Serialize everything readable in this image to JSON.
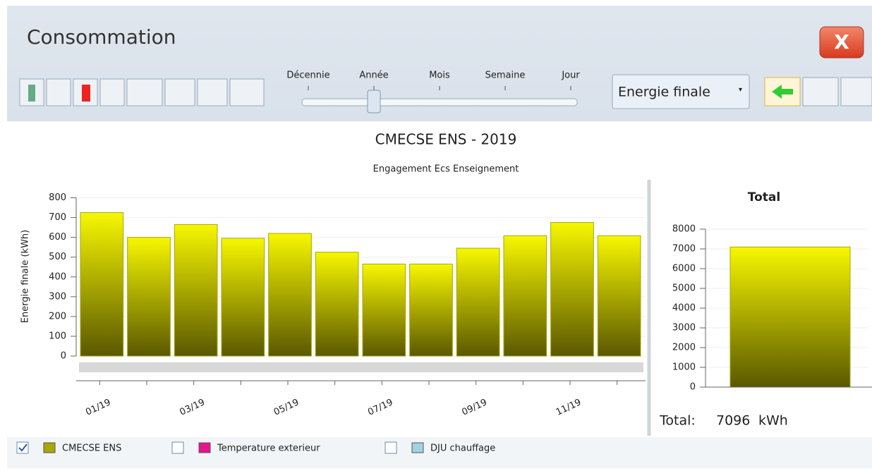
{
  "window": {
    "title": "Consommation",
    "close_label": "X"
  },
  "toolbar": {
    "slider_labels": [
      "Décennie",
      "Année",
      "Mois",
      "Semaine",
      "Jour"
    ],
    "slider_selected": 1,
    "dropdown": "Energie finale"
  },
  "legend_items": [
    {
      "name": "Temperature exterieur",
      "color": "#e6158c",
      "checked": false
    },
    {
      "name": "DJU chauffage",
      "color": "#9fd3df",
      "checked": false
    }
  ],
  "chart_data": [
    {
      "type": "bar",
      "title": "CMECSE ENS - 2019",
      "subtitle": "Engagement  Ecs Enseignement",
      "y_label": "Energie finale (kWh)",
      "categories": [
        "01/19",
        null,
        "03/19",
        null,
        "05/19",
        null,
        "07/19",
        null,
        "09/19",
        null,
        "11/19",
        null
      ],
      "series": [
        {
          "name": "CMECSE ENS",
          "color": "#a8a800",
          "checked": true,
          "values": [
            725,
            600,
            665,
            595,
            620,
            525,
            465,
            465,
            545,
            608,
            675,
            608
          ]
        }
      ],
      "ylim": [
        0,
        800
      ],
      "yticks": [
        0,
        100,
        200,
        300,
        400,
        500,
        600,
        700,
        800
      ],
      "grid": true
    },
    {
      "type": "bar",
      "title": "Total",
      "values": [
        7096
      ],
      "color": "#a8a800",
      "ylim": [
        0,
        8000
      ],
      "yticks": [
        0,
        1000,
        2000,
        3000,
        4000,
        5000,
        6000,
        7000,
        8000
      ],
      "grid": true,
      "footer_label": "Total:",
      "unit": "kWh"
    }
  ]
}
